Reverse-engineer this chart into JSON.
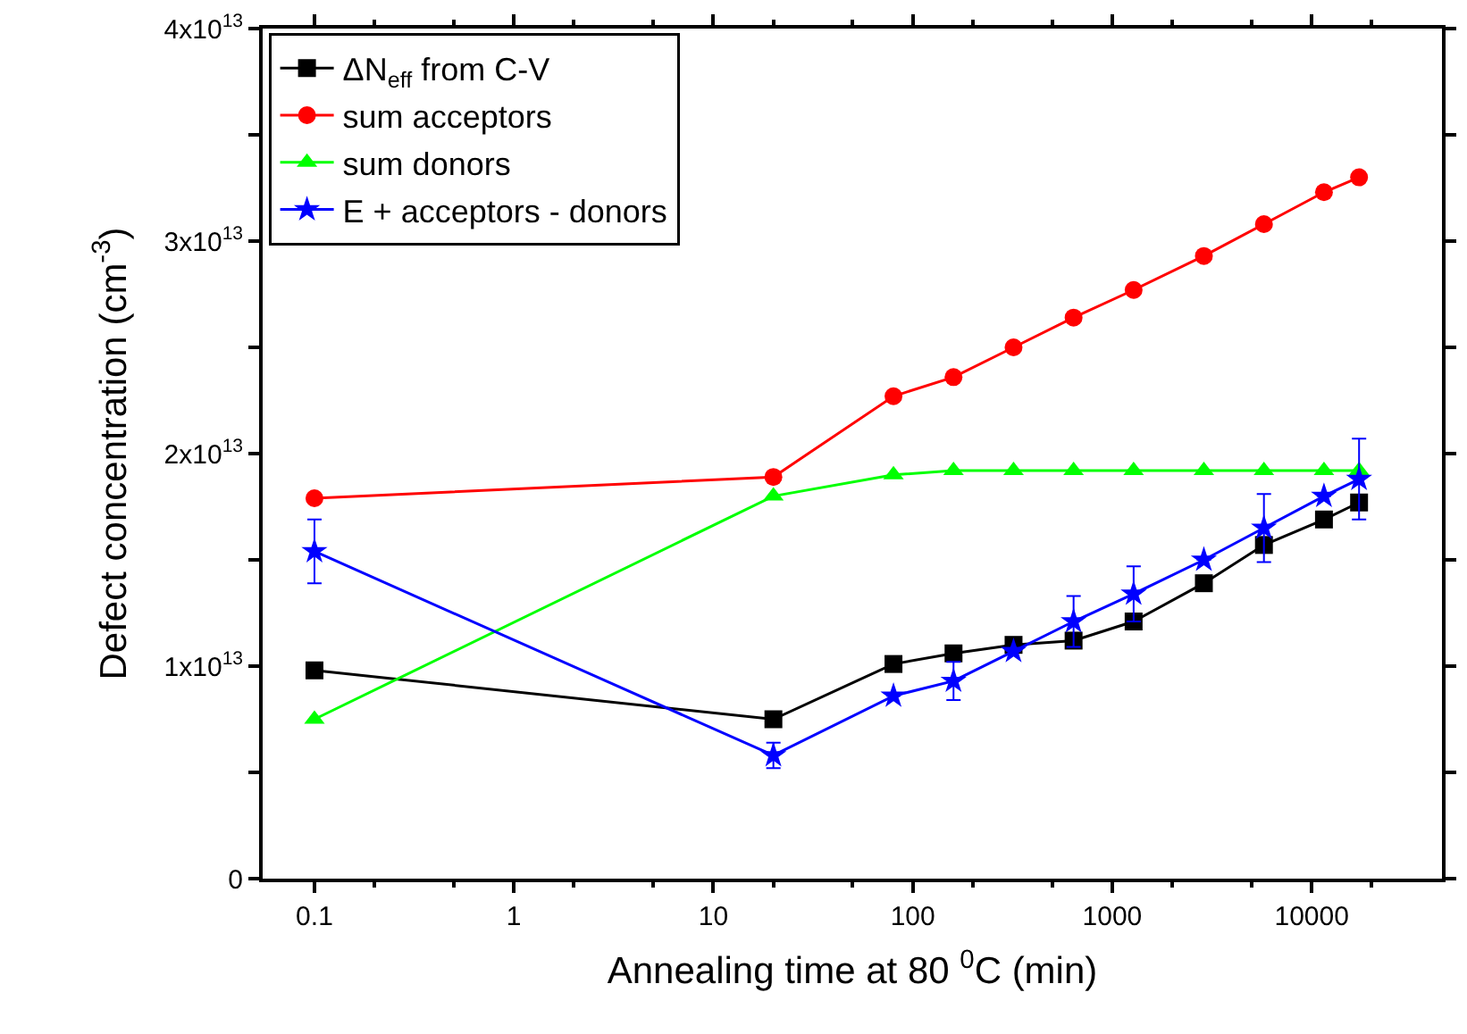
{
  "chart_data": {
    "type": "line",
    "xlabel": "Annealing time at 80 $^{0}$C (min)",
    "ylabel": "Defect concentration (cm$^{-3}$)",
    "x": [
      0.1,
      20,
      80,
      160,
      320,
      640,
      1280,
      2880,
      5760,
      11520,
      17280
    ],
    "log": "x",
    "xlim": [
      0.055,
      45000
    ],
    "xticks": [
      {
        "value": 0.1,
        "label": "0.1"
      },
      1,
      10,
      100,
      1000,
      10000
    ],
    "ylim": [
      0,
      40000000000000.0
    ],
    "yticks": [
      {
        "value": 0,
        "label": "0"
      },
      {
        "value": 5000000000000.0,
        "label": null
      },
      {
        "value": 10000000000000.0,
        "label": "1x10$^{13}$"
      },
      {
        "value": 15000000000000.0,
        "label": null
      },
      {
        "value": 20000000000000.0,
        "label": "2x10$^{13}$"
      },
      {
        "value": 25000000000000.0,
        "label": null
      },
      {
        "value": 30000000000000.0,
        "label": "3x10$^{13}$"
      },
      {
        "value": 35000000000000.0,
        "label": null
      },
      {
        "value": 40000000000000.0,
        "label": "4x10$^{13}$"
      }
    ],
    "legend": "top left",
    "series": [
      {
        "name": "ΔN$_{eff}$ from C-V",
        "color": "#000000",
        "marker": "square",
        "values": [
          9800000000000.0,
          7500000000000.0,
          10100000000000.0,
          10600000000000.0,
          11000000000000.0,
          11200000000000.0,
          12100000000000.0,
          13900000000000.0,
          15700000000000.0,
          16900000000000.0,
          17700000000000.0
        ]
      },
      {
        "name": "sum acceptors",
        "color": "#ff0000",
        "marker": "circle",
        "values": [
          17900000000000.0,
          18900000000000.0,
          22700000000000.0,
          23600000000000.0,
          25000000000000.0,
          26400000000000.0,
          27700000000000.0,
          29300000000000.0,
          30800000000000.0,
          32300000000000.0,
          33000000000000.0
        ]
      },
      {
        "name": "sum donors",
        "color": "#00ff00",
        "marker": "triangle",
        "values": [
          7500000000000.0,
          18000000000000.0,
          19000000000000.0,
          19200000000000.0,
          19200000000000.0,
          19200000000000.0,
          19200000000000.0,
          19200000000000.0,
          19200000000000.0,
          19200000000000.0,
          19200000000000.0
        ]
      },
      {
        "name": "E + acceptors - donors",
        "color": "#0000ff",
        "marker": "star",
        "values": [
          15400000000000.0,
          5800000000000.0,
          8600000000000.0,
          9300000000000.0,
          10700000000000.0,
          12100000000000.0,
          13400000000000.0,
          15000000000000.0,
          16500000000000.0,
          18000000000000.0,
          18800000000000.0
        ],
        "errors": [
          1500000000000.0,
          600000000000.0,
          null,
          900000000000.0,
          null,
          1200000000000.0,
          1300000000000.0,
          null,
          1600000000000.0,
          null,
          1900000000000.0
        ]
      }
    ]
  }
}
